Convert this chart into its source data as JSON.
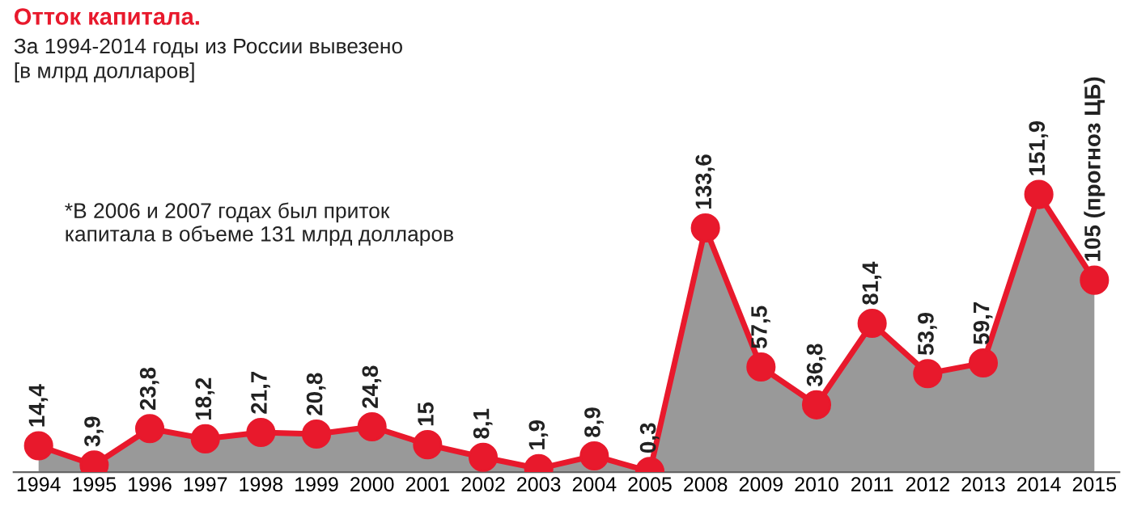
{
  "chart_data": {
    "type": "area",
    "title": "Отток капитала.",
    "subtitle": "За 1994-2014 годы из России вывезено\n[в млрд долларов]",
    "annotations": [
      "*В 2006 и 2007 годах был приток\nкапитала в объеме 131 млрд долларов"
    ],
    "categories": [
      "1994",
      "1995",
      "1996",
      "1997",
      "1998",
      "1999",
      "2000",
      "2001",
      "2002",
      "2003",
      "2004",
      "2005",
      "2008",
      "2009",
      "2010",
      "2011",
      "2012",
      "2013",
      "2014",
      "2015"
    ],
    "series": [
      {
        "color": "#e8192c",
        "values": [
          14.4,
          3.9,
          23.8,
          18.2,
          21.7,
          20.8,
          24.8,
          15,
          8.1,
          1.9,
          8.9,
          0.3,
          133.6,
          57.5,
          36.8,
          81.4,
          53.9,
          59.7,
          151.9,
          105
        ],
        "value_labels": [
          "14,4",
          "3,9",
          "23,8",
          "18,2",
          "21,7",
          "20,8",
          "24,8",
          "15",
          "8,1",
          "1,9",
          "8,9",
          "0,3",
          "133,6",
          "57,5",
          "36,8",
          "81,4",
          "53,9",
          "59,7",
          "151,9",
          "105 (прогноз ЦБ)"
        ]
      }
    ],
    "marker": "circle",
    "legend": false,
    "grid": false
  }
}
